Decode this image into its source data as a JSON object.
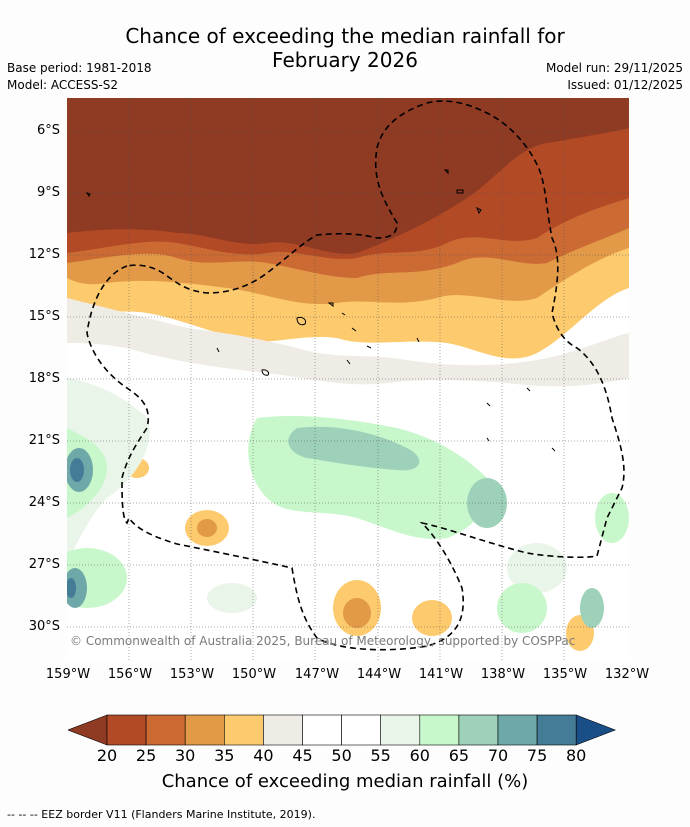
{
  "title_line1": "Chance of exceeding the median rainfall for",
  "title_line2": "February 2026",
  "base_period": "Base period: 1981-2018",
  "model": "Model: ACCESS-S2",
  "model_run": "Model run: 29/11/2025",
  "issued": "Issued: 01/12/2025",
  "lat_labels": [
    "6°S",
    "9°S",
    "12°S",
    "15°S",
    "18°S",
    "21°S",
    "24°S",
    "27°S",
    "30°S"
  ],
  "lon_labels": [
    "159°W",
    "156°W",
    "153°W",
    "150°W",
    "147°W",
    "144°W",
    "141°W",
    "138°W",
    "135°W",
    "132°W"
  ],
  "copyright": "© Commonwealth of Australia 2025, Bureau of Meteorology, supported by COSPPac",
  "colorbar": {
    "ticks": [
      "20",
      "25",
      "30",
      "35",
      "40",
      "45",
      "50",
      "55",
      "60",
      "65",
      "70",
      "75",
      "80"
    ],
    "label": "Chance of exceeding median rainfall (%)",
    "colors": [
      "#8f3a22",
      "#b24a26",
      "#cb6a33",
      "#e29a48",
      "#fdcb6e",
      "#efece6",
      "#ffffff",
      "#ffffff",
      "#eaf5ea",
      "#c8f7cb",
      "#9dd1b9",
      "#6ea8a8",
      "#447c98",
      "#1a4e86"
    ]
  },
  "footnote": "--  --  -- EEZ border V11 (Flanders Marine Institute, 2019)."
}
